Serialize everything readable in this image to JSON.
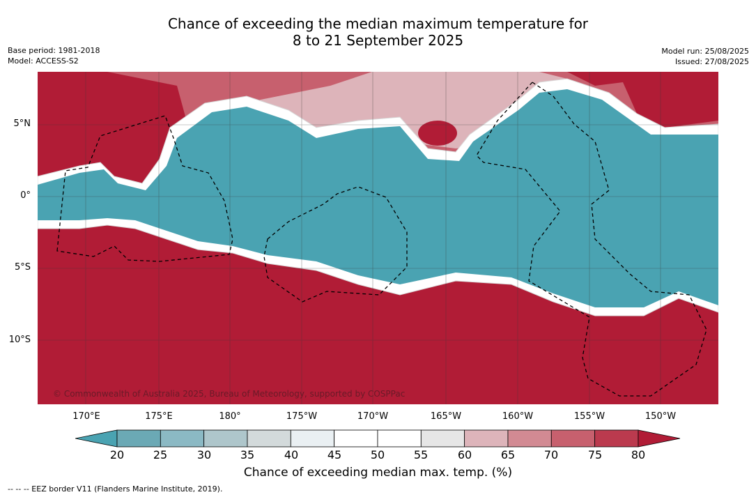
{
  "title": {
    "line1": "Chance of exceeding the median maximum temperature for",
    "line2": "8 to 21 September 2025"
  },
  "meta_left": {
    "base_period": "Base period: 1981-2018",
    "model": "Model: ACCESS-S2"
  },
  "meta_right": {
    "model_run": "Model run: 25/08/2025",
    "issued": "Issued: 27/08/2025"
  },
  "lon_labels": [
    "170°E",
    "175°E",
    "180°",
    "175°W",
    "170°W",
    "165°W",
    "160°W",
    "155°W",
    "150°W"
  ],
  "lat_labels": [
    "5°N",
    "0°",
    "5°S",
    "10°S"
  ],
  "colorbar": {
    "ticks": [
      "20",
      "25",
      "30",
      "35",
      "40",
      "45",
      "50",
      "55",
      "60",
      "65",
      "70",
      "75",
      "80"
    ],
    "colors": [
      "#4aa3b2",
      "#6ba9b5",
      "#8bb9c4",
      "#aec6cb",
      "#d3dadb",
      "#eaf0f3",
      "#ffffff",
      "#ffffff",
      "#e6e6e6",
      "#ddb4ba",
      "#d28a93",
      "#c7606e",
      "#bb3a4e",
      "#b11c36"
    ],
    "label": "Chance of exceeding median max. temp. (%)"
  },
  "copyright": "© Commonwealth of Australia 2025, Bureau of Meteorology, supported by COSPPac",
  "legend": "--  --  -- EEZ border V11 (Flanders Marine Institute, 2019).",
  "colors": {
    "hot": "#b11c36",
    "cool": "#4aa3b2",
    "warm_light": "#c7606e",
    "pink": "#ddb4ba"
  }
}
